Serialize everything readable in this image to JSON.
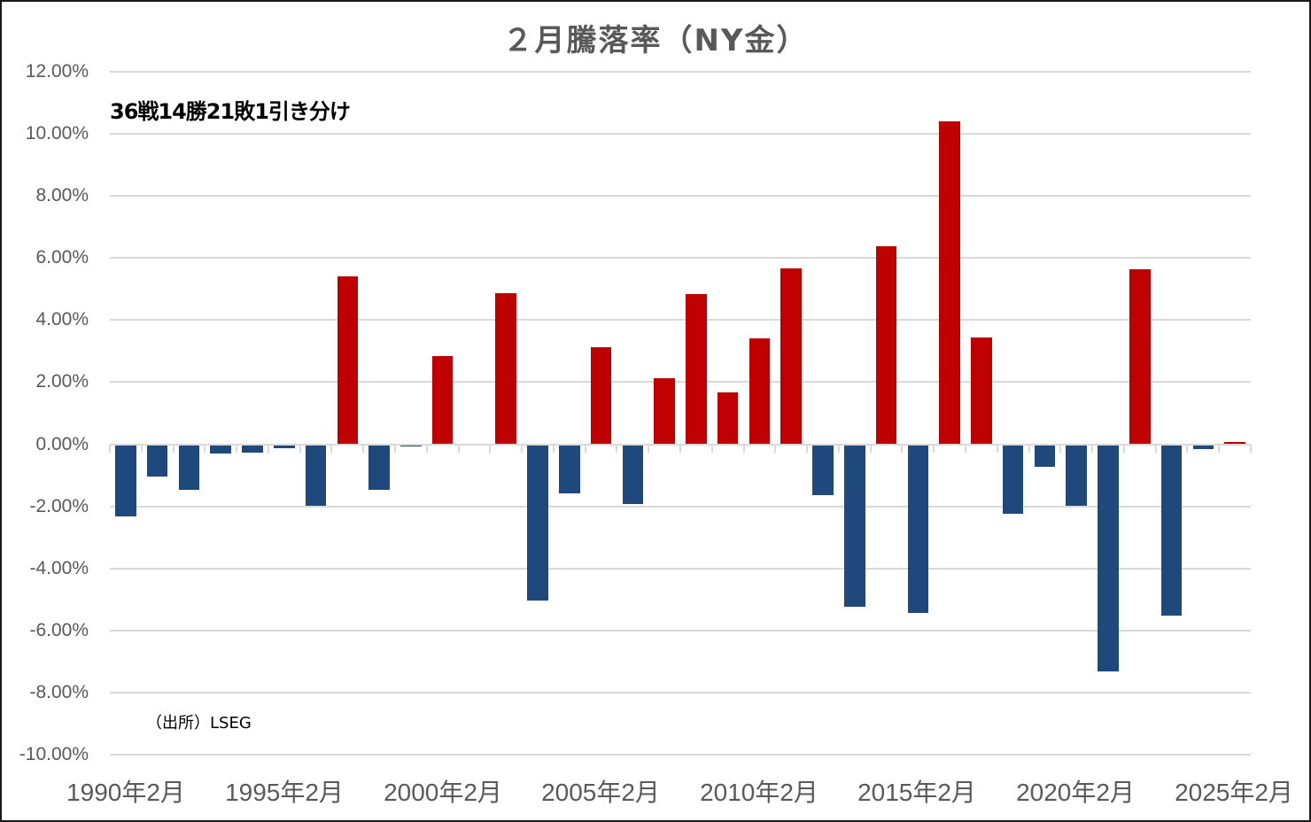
{
  "chart_data": {
    "type": "bar",
    "title": "２月騰落率（NY金）",
    "annotation": "36戦14勝21敗1引き分け",
    "source": "（出所）LSEG",
    "xlabel": "",
    "ylabel": "",
    "ylim": [
      -10,
      12
    ],
    "yticks": [
      "12.00%",
      "10.00%",
      "8.00%",
      "6.00%",
      "4.00%",
      "2.00%",
      "0.00%",
      "-2.00%",
      "-4.00%",
      "-6.00%",
      "-8.00%",
      "-10.00%"
    ],
    "ytick_values": [
      12,
      10,
      8,
      6,
      4,
      2,
      0,
      -2,
      -4,
      -6,
      -8,
      -10
    ],
    "xtick_labels": [
      "1990年2月",
      "1995年2月",
      "2000年2月",
      "2005年2月",
      "2010年2月",
      "2015年2月",
      "2020年2月",
      "2025年2月"
    ],
    "grid": true,
    "legend": null,
    "colors": {
      "up": "#C00000",
      "down": "#1F497D",
      "grid": "#D9D9D9",
      "axis_text": "#595959"
    },
    "categories": [
      "1990年2月",
      "1991年2月",
      "1992年2月",
      "1993年2月",
      "1994年2月",
      "1995年2月",
      "1996年2月",
      "1997年2月",
      "1998年2月",
      "1999年2月",
      "2000年2月",
      "2001年2月",
      "2002年2月",
      "2003年2月",
      "2004年2月",
      "2005年2月",
      "2006年2月",
      "2007年2月",
      "2008年2月",
      "2009年2月",
      "2010年2月",
      "2011年2月",
      "2012年2月",
      "2013年2月",
      "2014年2月",
      "2015年2月",
      "2016年2月",
      "2017年2月",
      "2018年2月",
      "2019年2月",
      "2020年2月",
      "2021年2月",
      "2022年2月",
      "2023年2月",
      "2024年2月",
      "2025年2月"
    ],
    "values": [
      -2.31,
      -1.0,
      -1.45,
      -0.26,
      -0.23,
      -0.09,
      -1.94,
      5.42,
      -1.45,
      -0.04,
      2.85,
      0.0,
      4.87,
      -5.02,
      -1.54,
      3.14,
      -1.91,
      2.14,
      4.85,
      1.68,
      3.42,
      5.67,
      -1.62,
      -5.22,
      6.39,
      -5.42,
      10.4,
      3.45,
      -2.22,
      -0.71,
      -1.94,
      -7.3,
      5.64,
      -5.5,
      -0.14,
      0.06
    ],
    "unit": "%"
  }
}
